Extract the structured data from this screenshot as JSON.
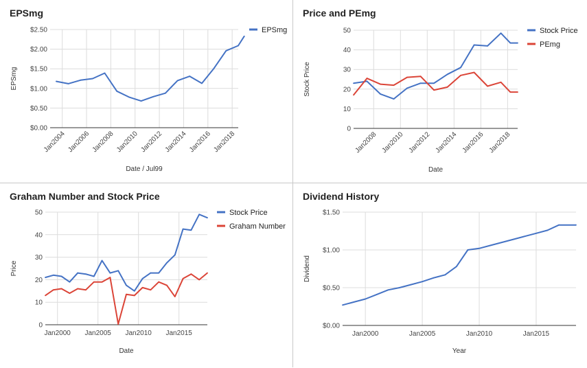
{
  "chart_data": [
    {
      "type": "line",
      "title": "EPSmg",
      "xlabel": "Date / Jul99",
      "ylabel": "EPSmg",
      "xlim": [
        2003.0,
        2018.5
      ],
      "ylim": [
        0,
        2.5
      ],
      "y_ticks": [
        0,
        0.5,
        1.0,
        1.5,
        2.0,
        2.5
      ],
      "y_tick_labels": [
        "$0.00",
        "$0.50",
        "$1.00",
        "$1.50",
        "$2.00",
        "$2.50"
      ],
      "x_ticks": [
        2004,
        2006,
        2008,
        2010,
        2012,
        2014,
        2016,
        2018
      ],
      "x_tick_labels": [
        "Jan2004",
        "Jan2006",
        "Jan2008",
        "Jan2010",
        "Jan2012",
        "Jan2014",
        "Jan2016",
        "Jan2018"
      ],
      "rotated_x_labels": true,
      "grid": true,
      "legend": "right",
      "series": [
        {
          "name": "EPSmg",
          "color": "#4472c4",
          "x": [
            2003.5,
            2004.5,
            2005.5,
            2006.5,
            2007.5,
            2008.5,
            2009.5,
            2010.5,
            2011.5,
            2012.5,
            2013.5,
            2014.5,
            2015.5,
            2016.5,
            2017.5,
            2018.5,
            2019.0
          ],
          "y": [
            1.18,
            1.12,
            1.21,
            1.25,
            1.39,
            0.93,
            0.78,
            0.68,
            0.79,
            0.88,
            1.2,
            1.31,
            1.13,
            1.51,
            1.96,
            2.09,
            2.33
          ]
        }
      ]
    },
    {
      "type": "line",
      "title": "Price and PEmg",
      "xlabel": "Date",
      "ylabel": "Stock Price",
      "xlim": [
        2006.5,
        2018.75
      ],
      "ylim": [
        0,
        50
      ],
      "y_ticks": [
        0,
        10,
        20,
        30,
        40,
        50
      ],
      "y_tick_labels": [
        "0",
        "10",
        "20",
        "30",
        "40",
        "50"
      ],
      "x_ticks": [
        2008,
        2010,
        2012,
        2014,
        2016,
        2018
      ],
      "x_tick_labels": [
        "Jan2008",
        "Jan2010",
        "Jan2012",
        "Jan2014",
        "Jan2016",
        "Jan2018"
      ],
      "rotated_x_labels": true,
      "grid": true,
      "legend": "right",
      "series": [
        {
          "name": "Stock Price",
          "color": "#4472c4",
          "x": [
            2006.5,
            2007.5,
            2008.5,
            2009.5,
            2010.5,
            2011.5,
            2012.5,
            2013.5,
            2014.5,
            2015.5,
            2016.5,
            2017.5,
            2018.2,
            2018.75
          ],
          "y": [
            23,
            24,
            17.5,
            15,
            20.5,
            23,
            23,
            27.5,
            31,
            42.5,
            42,
            48.5,
            43.5,
            43.5
          ]
        },
        {
          "name": "PEmg",
          "color": "#db4437",
          "x": [
            2006.5,
            2007.5,
            2008.5,
            2009.5,
            2010.5,
            2011.5,
            2012.5,
            2013.5,
            2014.5,
            2015.5,
            2016.5,
            2017.5,
            2018.2,
            2018.75
          ],
          "y": [
            17,
            25.5,
            22.5,
            22,
            26,
            26.5,
            19.5,
            21,
            27,
            28.5,
            21.5,
            23.5,
            18.5,
            18.5
          ]
        }
      ]
    },
    {
      "type": "line",
      "title": "Graham Number and Stock Price",
      "xlabel": "Date",
      "ylabel": "Price",
      "xlim": [
        1998.5,
        2018.5
      ],
      "ylim": [
        0,
        50
      ],
      "y_ticks": [
        0,
        10,
        20,
        30,
        40,
        50
      ],
      "y_tick_labels": [
        "0",
        "10",
        "20",
        "30",
        "40",
        "50"
      ],
      "x_ticks": [
        2000,
        2005,
        2010,
        2015
      ],
      "x_tick_labels": [
        "Jan2000",
        "Jan2005",
        "Jan2010",
        "Jan2015"
      ],
      "grid": true,
      "legend": "right",
      "series": [
        {
          "name": "Stock Price",
          "color": "#4472c4",
          "x": [
            1998.5,
            1999.5,
            2000.5,
            2001.5,
            2002.5,
            2003.5,
            2004.5,
            2005.5,
            2006.5,
            2007.5,
            2008.5,
            2009.5,
            2010.5,
            2011.5,
            2012.5,
            2013.5,
            2014.5,
            2015.5,
            2016.5,
            2017.5,
            2018.5
          ],
          "y": [
            21,
            22,
            21.5,
            19,
            23,
            22.5,
            21.5,
            28.5,
            23,
            24,
            17.5,
            15,
            20.5,
            23,
            23,
            27.5,
            31,
            42.5,
            42,
            49,
            47.5
          ]
        },
        {
          "name": "Graham Number",
          "color": "#db4437",
          "x": [
            1998.5,
            1999.5,
            2000.5,
            2001.5,
            2002.5,
            2003.5,
            2004.5,
            2005.5,
            2006.5,
            2007.5,
            2008.5,
            2009.5,
            2010.5,
            2011.5,
            2012.5,
            2013.5,
            2014.5,
            2015.5,
            2016.5,
            2017.5,
            2018.5
          ],
          "y": [
            13,
            15.5,
            16,
            14,
            16,
            15.5,
            19,
            19,
            21,
            0.3,
            13.5,
            13,
            16.5,
            15.5,
            19,
            17.5,
            12.5,
            20.5,
            22.5,
            20,
            23
          ]
        }
      ]
    },
    {
      "type": "line",
      "title": "Dividend History",
      "xlabel": "Year",
      "ylabel": "Dividend",
      "xlim": [
        1998.0,
        2018.5
      ],
      "ylim": [
        0,
        1.5
      ],
      "y_ticks": [
        0,
        0.5,
        1.0,
        1.5
      ],
      "y_tick_labels": [
        "$0.00",
        "$0.50",
        "$1.00",
        "$1.50"
      ],
      "x_ticks": [
        2000,
        2005,
        2010,
        2015
      ],
      "x_tick_labels": [
        "Jan2000",
        "Jan2005",
        "Jan2010",
        "Jan2015"
      ],
      "grid": true,
      "legend": "none",
      "series": [
        {
          "name": "",
          "color": "#4472c4",
          "x": [
            1998.0,
            1999.0,
            2000.0,
            2001.0,
            2002.0,
            2003.0,
            2004.0,
            2005.0,
            2006.0,
            2007.0,
            2008.0,
            2009.0,
            2010.0,
            2011.0,
            2012.0,
            2013.0,
            2014.0,
            2015.0,
            2016.0,
            2017.0,
            2018.5
          ],
          "y": [
            0.27,
            0.31,
            0.35,
            0.41,
            0.47,
            0.5,
            0.54,
            0.58,
            0.63,
            0.67,
            0.78,
            1.0,
            1.02,
            1.06,
            1.1,
            1.14,
            1.18,
            1.22,
            1.26,
            1.33,
            1.33
          ]
        }
      ]
    }
  ]
}
